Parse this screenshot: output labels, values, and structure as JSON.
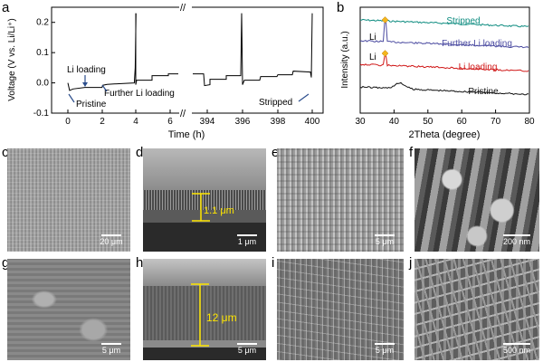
{
  "panels": {
    "a": "a",
    "b": "b",
    "c": "c",
    "d": "d",
    "e": "e",
    "f": "f",
    "g": "g",
    "h": "h",
    "i": "i",
    "j": "j"
  },
  "chart_data": [
    {
      "type": "line",
      "panel": "a",
      "xlabel": "Time (h)",
      "ylabel": "Voltage (V vs. Li/Li⁺)",
      "xticks_left": [
        "0",
        "2",
        "4",
        "6"
      ],
      "xticks_right": [
        "394",
        "396",
        "398",
        "400"
      ],
      "yticks": [
        "-0.1",
        "0.0",
        "0.1",
        "0.2"
      ],
      "ylim": [
        -0.1,
        0.25
      ],
      "axis_break": "//",
      "annotations": [
        "Li loading",
        "Pristine",
        "Further Li loading",
        "Stripped"
      ],
      "series": [
        {
          "x": [
            0,
            0.1,
            0.3,
            1,
            2,
            2.05,
            2.3,
            3.9,
            3.95,
            4.0
          ],
          "y": [
            0.0,
            -0.025,
            -0.02,
            -0.015,
            -0.015,
            -0.008,
            -0.005,
            0.0,
            0.05,
            0.23
          ]
        }
      ]
    },
    {
      "type": "line",
      "panel": "b",
      "xlabel": "2Theta (degree)",
      "ylabel": "Intensity (a.u.)",
      "xticks": [
        "30",
        "40",
        "50",
        "60",
        "70",
        "80"
      ],
      "xlim": [
        30,
        80
      ],
      "peak_label": "Li",
      "series": [
        {
          "name": "Stripped",
          "color": "#0e8c80"
        },
        {
          "name": "Further Li loading",
          "color": "#4a4aa0"
        },
        {
          "name": "Li loading",
          "color": "#d01818"
        },
        {
          "name": "Pristine",
          "color": "#111111"
        }
      ]
    }
  ],
  "scalebars": {
    "c": "20 μm",
    "d": "1 μm",
    "d_thickness": "1.1 μm",
    "e": "5 μm",
    "f": "200 nm",
    "g": "5 μm",
    "h": "5 μm",
    "h_thickness": "12 μm",
    "i": "5 μm",
    "j": "500 nm"
  }
}
